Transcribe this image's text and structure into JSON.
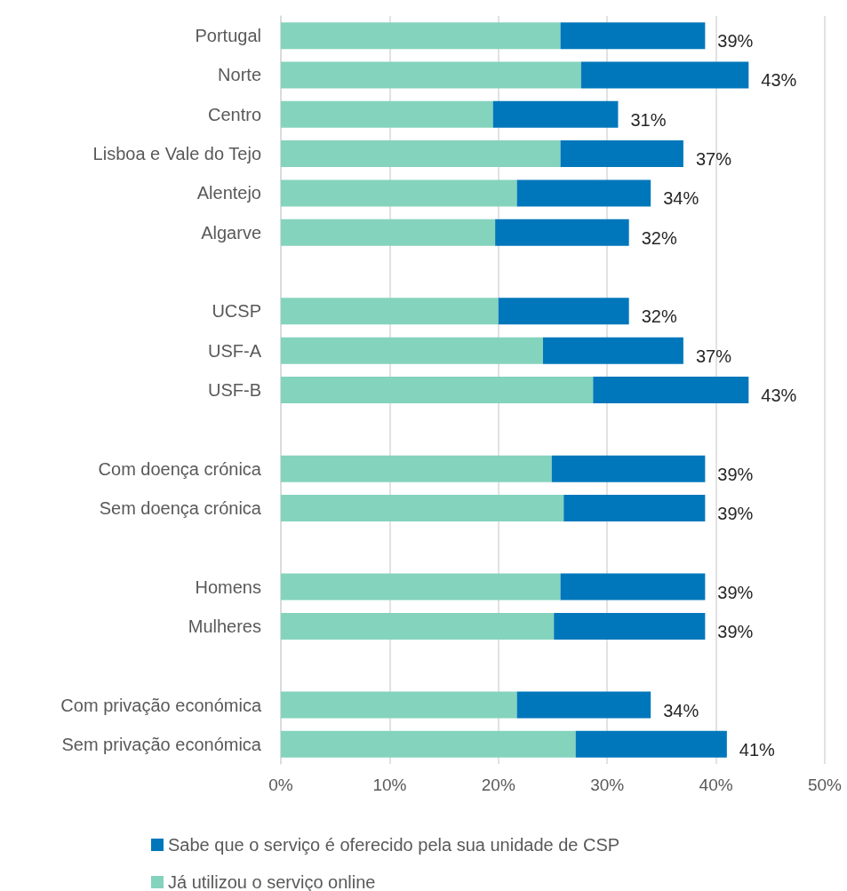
{
  "chart_data": {
    "type": "bar",
    "orientation": "horizontal",
    "stacked": true,
    "categories": [
      "Portugal",
      "Norte",
      "Centro",
      "Lisboa e Vale do Tejo",
      "Alentejo",
      "Algarve",
      null,
      "UCSP",
      "USF-A",
      "USF-B",
      null,
      "Com doença crónica",
      "Sem doença crónica",
      null,
      "Homens",
      "Mulheres",
      null,
      "Com privação económica",
      "Sem privação económica"
    ],
    "series": [
      {
        "name": "Já utilizou o serviço online",
        "color": "#84d3bd",
        "values": [
          25.7,
          27.6,
          19.5,
          25.7,
          21.7,
          19.7,
          null,
          20.0,
          24.1,
          28.7,
          null,
          24.9,
          26.0,
          null,
          25.7,
          25.1,
          null,
          21.7,
          27.1
        ]
      },
      {
        "name": "Sabe que o serviço é oferecido pela sua unidade de CSP",
        "color": "#0077bb",
        "values": [
          13.3,
          15.4,
          11.5,
          11.3,
          12.3,
          12.3,
          null,
          12.0,
          12.9,
          14.3,
          null,
          14.1,
          13.0,
          null,
          13.3,
          13.9,
          null,
          12.3,
          13.9
        ]
      }
    ],
    "totals": [
      "39%",
      "43%",
      "31%",
      "37%",
      "34%",
      "32%",
      null,
      "32%",
      "37%",
      "43%",
      null,
      "39%",
      "39%",
      null,
      "39%",
      "39%",
      null,
      "34%",
      "41%"
    ],
    "xlim": [
      0,
      50
    ],
    "xticks": [
      {
        "value": 0,
        "label": "0%"
      },
      {
        "value": 10,
        "label": "10%"
      },
      {
        "value": 20,
        "label": "20%"
      },
      {
        "value": 30,
        "label": "30%"
      },
      {
        "value": 40,
        "label": "40%"
      },
      {
        "value": 50,
        "label": "50%"
      }
    ],
    "grid": "x",
    "legend": "bottom"
  }
}
